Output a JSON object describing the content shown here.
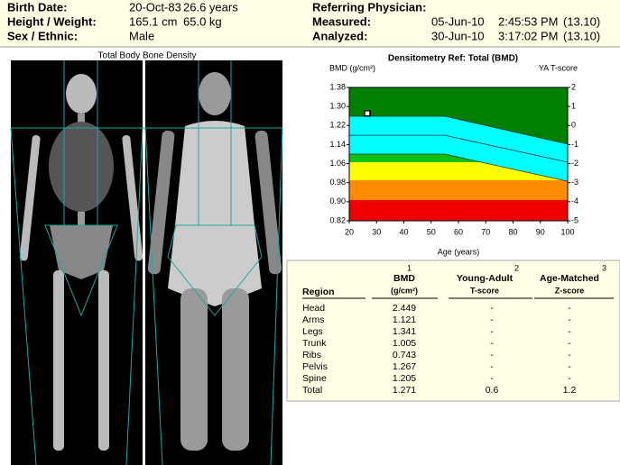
{
  "header": {
    "left": [
      [
        "Birth Date:",
        "20-Oct-83",
        "26.6 years"
      ],
      [
        "Height / Weight:",
        "165.1 cm",
        "65.0 kg"
      ],
      [
        "Sex / Ethnic:",
        "Male"
      ]
    ],
    "right": [
      [
        "Referring Physician:"
      ],
      [
        "Measured:",
        "05-Jun-10",
        "2:45:53 PM",
        "(13.10)"
      ],
      [
        "Analyzed:",
        "30-Jun-10",
        "3:17:02 PM",
        "(13.10)"
      ]
    ]
  },
  "images": {
    "caption": "Total Body Bone Density"
  },
  "chart_data": {
    "type": "reference-curve",
    "title": "Densitometry Ref: Total (BMD)",
    "y_label": "BMD (g/cm²)",
    "y2_label": "YA T-score",
    "x_label": "Age (years)",
    "xlim": [
      20,
      100
    ],
    "xticks": [
      20,
      30,
      40,
      50,
      60,
      70,
      80,
      90,
      100
    ],
    "ylim": [
      0.82,
      1.38
    ],
    "yticks": [
      {
        "value": 0.82,
        "label": "0.82"
      },
      {
        "value": 0.9,
        "label": "0.90"
      },
      {
        "value": 0.98,
        "label": "0.98"
      },
      {
        "value": 1.06,
        "label": "1.06"
      },
      {
        "value": 1.14,
        "label": "1.14"
      },
      {
        "value": 1.22,
        "label": "1.22"
      },
      {
        "value": 1.3,
        "label": "1.30"
      },
      {
        "value": 1.38,
        "label": "1.38"
      }
    ],
    "y2lim": [
      -5,
      2
    ],
    "y2ticks": [
      2,
      1,
      0,
      -1,
      -2,
      -3,
      -4,
      -5
    ],
    "bands": [
      {
        "color": "#008000",
        "range": [
          1.1,
          1.38
        ]
      },
      {
        "color": "#10c010",
        "range": [
          1.066,
          1.1
        ]
      },
      {
        "color": "#ffff00",
        "range": [
          0.99,
          1.066
        ]
      },
      {
        "color": "#ff8c00",
        "range": [
          0.907,
          0.99
        ]
      },
      {
        "color": "#ee0000",
        "range": [
          0.82,
          0.907
        ]
      }
    ],
    "reference": {
      "color": "#00ffff",
      "x": [
        20,
        55,
        100
      ],
      "upper": [
        1.259,
        1.259,
        1.142
      ],
      "mean": [
        1.179,
        1.179,
        1.066
      ],
      "lower": [
        1.1,
        1.1,
        0.986
      ]
    },
    "point": {
      "x": 26.6,
      "y": 1.271
    }
  },
  "table": {
    "headers": [
      [
        "Region"
      ],
      [
        "BMD",
        "(g/cm²)"
      ],
      [
        "Young-Adult",
        "T-score"
      ],
      [
        "Age-Matched",
        "Z-score"
      ]
    ],
    "superscripts": [
      "1",
      "2",
      "3"
    ],
    "rows": [
      [
        "Head",
        "2.449",
        "-",
        "-"
      ],
      [
        "Arms",
        "1.121",
        "-",
        "-"
      ],
      [
        "Legs",
        "1.341",
        "-",
        "-"
      ],
      [
        "Trunk",
        "1.005",
        "-",
        "-"
      ],
      [
        "Ribs",
        "0.743",
        "-",
        "-"
      ],
      [
        "Pelvis",
        "1.267",
        "-",
        "-"
      ],
      [
        "Spine",
        "1.205",
        "-",
        "-"
      ],
      [
        "Total",
        "1.271",
        "0.6",
        "1.2"
      ]
    ]
  }
}
